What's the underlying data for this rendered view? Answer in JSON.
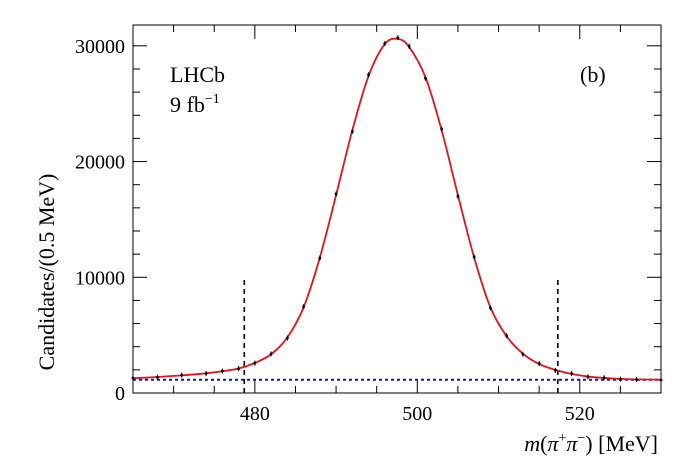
{
  "chart_data": {
    "type": "line",
    "panel_label": "(b)",
    "experiment": "LHCb",
    "luminosity": {
      "value": "9 fb",
      "superscript": "−1"
    },
    "xlabel": {
      "m": "m",
      "open": "(",
      "pi1": "π",
      "sup1": "+",
      "pi2": "π",
      "sup2": "−",
      "close": ")",
      "unit": " [MeV]"
    },
    "ylabel": "Candidates/(0.5 MeV)",
    "xlim": [
      465,
      530
    ],
    "ylim": [
      0,
      31800
    ],
    "x_ticks": [
      480,
      500,
      520
    ],
    "x_tick_labels": [
      "480",
      "500",
      "520"
    ],
    "y_ticks": [
      0,
      10000,
      20000,
      30000
    ],
    "y_tick_labels": [
      "0",
      "10000",
      "20000",
      "30000"
    ],
    "signal_window": [
      478.7,
      517.3
    ],
    "signal_window_height": 10000,
    "background_level": 1150,
    "series": [
      {
        "name": "fit",
        "color": "#e8101a",
        "x": [
          465,
          468,
          471,
          474,
          476,
          478,
          480,
          482,
          484,
          486,
          488,
          490,
          492,
          494,
          496,
          497.6,
          499,
          501,
          503,
          505,
          507,
          509,
          511,
          513,
          515,
          517,
          519,
          521,
          523,
          525,
          527,
          530
        ],
        "y": [
          1280,
          1380,
          1520,
          1700,
          1880,
          2120,
          2600,
          3350,
          4800,
          7400,
          11700,
          17100,
          22700,
          27400,
          30150,
          30600,
          29900,
          27300,
          22700,
          17100,
          11700,
          7400,
          4900,
          3400,
          2500,
          2000,
          1650,
          1420,
          1300,
          1220,
          1180,
          1150
        ]
      },
      {
        "name": "data",
        "color": "#000000",
        "x": [
          465,
          468,
          471,
          474,
          476,
          478,
          480,
          482,
          484,
          486,
          488,
          490,
          492,
          494,
          496,
          497.6,
          499,
          501,
          503,
          505,
          507,
          509,
          511,
          513,
          515,
          517,
          519,
          521,
          523,
          525,
          527,
          530
        ],
        "y": [
          1300,
          1360,
          1550,
          1680,
          1900,
          2100,
          2580,
          3380,
          4750,
          7450,
          11650,
          17200,
          22600,
          27500,
          30200,
          30700,
          29950,
          27200,
          22800,
          17000,
          11750,
          7350,
          4950,
          3350,
          2550,
          1950,
          1680,
          1400,
          1320,
          1200,
          1160,
          1120
        ]
      }
    ]
  }
}
